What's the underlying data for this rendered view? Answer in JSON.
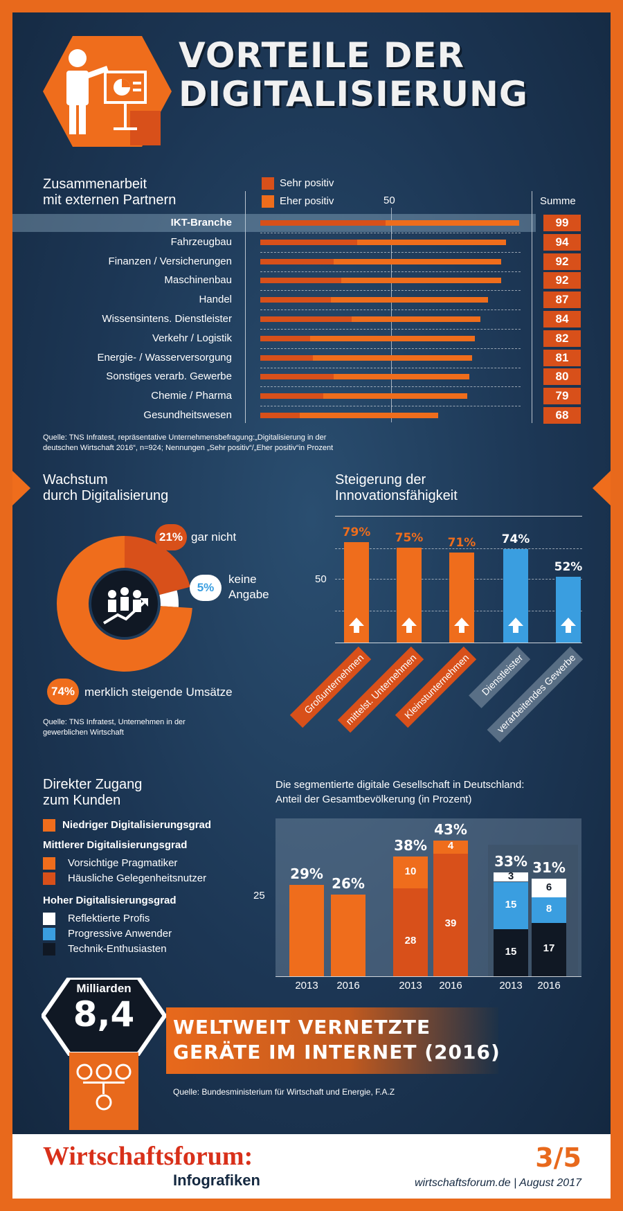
{
  "title_line1": "VORTEILE DER",
  "title_line2": "DIGITALISIERUNG",
  "colors": {
    "dark_orange": "#d8501a",
    "orange": "#ef6d1c",
    "blue": "#3a9ee0",
    "white": "#ffffff",
    "black": "#101824"
  },
  "section1": {
    "title_line1": "Zusammenarbeit",
    "title_line2": "mit externen Partnern",
    "legend": [
      "Sehr positiv",
      "Eher positiv"
    ],
    "tick": "50",
    "sum_header": "Summe",
    "source_line1": "Quelle: TNS Infratest, repräsentative Unternehmensbefragung:„Digitalisierung in der",
    "source_line2": "deutschen Wirtschaft 2016“, n=924; Nennungen „Sehr positiv“/„Eher positiv“in Prozent"
  },
  "section2": {
    "title_line1": "Wachstum",
    "title_line2": "durch Digitalisierung",
    "label_garnicht": "gar nicht",
    "label_keine_1": "keine",
    "label_keine_2": "Angabe",
    "label_merklich": "merklich steigende Umsätze",
    "source_line1": "Quelle: TNS Infratest, Unternehmen in der",
    "source_line2": "gewerblichen Wirtschaft"
  },
  "section3": {
    "title_line1": "Steigerung der",
    "title_line2": "Innovationsfähigkeit",
    "tick": "50"
  },
  "section4": {
    "title_line1": "Direkter Zugang",
    "title_line2": "zum Kunden",
    "chart_title_line1": "Die segmentierte digitale Gesellschaft in Deutschland:",
    "chart_title_line2": "Anteil der Gesamtbevölkerung (in Prozent)",
    "tick": "25",
    "legend": {
      "low": "Niedriger Digitalisierungsgrad",
      "mid_head": "Mittlerer Digitalisierungsgrad",
      "mid1": "Vorsichtige Pragmatiker",
      "mid2": "Häusliche Gelegenheitsnutzer",
      "high_head": "Hoher Digitalisierungsgrad",
      "high1": "Reflektierte Profis",
      "high2": "Progressive Anwender",
      "high3": "Technik-Enthusiasten"
    }
  },
  "section5": {
    "unit": "Milliarden",
    "value": "8,4",
    "headline_line1": "WELTWEIT VERNETZTE",
    "headline_line2": "GERÄTE IM INTERNET (2016)",
    "source": "Quelle: Bundesministerium für Wirtschaft und Energie, F.A.Z"
  },
  "footer": {
    "brand": "Wirtschaftsforum:",
    "sub": "Infografiken",
    "page": "3/5",
    "site": "wirtschaftsforum.de | August 2017"
  },
  "chart_data": [
    {
      "type": "bar",
      "orientation": "horizontal",
      "stacked": true,
      "categories": [
        "IKT-Branche",
        "Fahrzeugbau",
        "Finanzen / Versicherungen",
        "Maschinenbau",
        "Handel",
        "Wissensintens. Dienstleister",
        "Verkehr / Logistik",
        "Energie- / Wasserversorgung",
        "Sonstiges verarb. Gewerbe",
        "Chemie / Pharma",
        "Gesundheitswesen"
      ],
      "series": [
        {
          "name": "Sehr positiv",
          "values": [
            48,
            37,
            28,
            31,
            27,
            35,
            19,
            20,
            28,
            24,
            15
          ]
        },
        {
          "name": "Eher positiv",
          "values": [
            51,
            57,
            64,
            61,
            60,
            49,
            63,
            61,
            52,
            55,
            53
          ]
        }
      ],
      "totals": [
        99,
        94,
        92,
        92,
        87,
        84,
        82,
        81,
        80,
        79,
        68
      ],
      "xlim": [
        0,
        100
      ]
    },
    {
      "type": "pie",
      "donut": true,
      "slices": [
        {
          "label": "merklich steigende Umsätze",
          "value": 74,
          "display": "74%"
        },
        {
          "label": "gar nicht",
          "value": 21,
          "display": "21%"
        },
        {
          "label": "keine Angabe",
          "value": 5,
          "display": "5%"
        }
      ]
    },
    {
      "type": "bar",
      "categories": [
        "Großunternehmen",
        "mittelst. Unternehmen",
        "Kleinstunternehmen",
        "Dienstleister",
        "verarbeitendes Gewerbe"
      ],
      "values": [
        79,
        75,
        71,
        74,
        52
      ],
      "labels": [
        "79%",
        "75%",
        "71%",
        "74%",
        "52%"
      ],
      "ylim": [
        0,
        100
      ]
    },
    {
      "type": "bar",
      "stacked": true,
      "groups": [
        {
          "name": "Niedriger Digitalisierungsgrad",
          "bars": [
            {
              "x": "2013",
              "total_label": "29%",
              "segments": [
                {
                  "series": "Niedriger Digitalisierungsgrad",
                  "value": 29,
                  "label": ""
                }
              ]
            },
            {
              "x": "2016",
              "total_label": "26%",
              "segments": [
                {
                  "series": "Niedriger Digitalisierungsgrad",
                  "value": 26,
                  "label": ""
                }
              ]
            }
          ]
        },
        {
          "name": "Mittlerer Digitalisierungsgrad",
          "bars": [
            {
              "x": "2013",
              "total_label": "38%",
              "segments": [
                {
                  "series": "Häusliche Gelegenheitsnutzer",
                  "value": 28,
                  "label": "28"
                },
                {
                  "series": "Vorsichtige Pragmatiker",
                  "value": 10,
                  "label": "10"
                }
              ]
            },
            {
              "x": "2016",
              "total_label": "43%",
              "segments": [
                {
                  "series": "Häusliche Gelegenheitsnutzer",
                  "value": 39,
                  "label": "39"
                },
                {
                  "series": "Vorsichtige Pragmatiker",
                  "value": 4,
                  "label": "4"
                }
              ]
            }
          ]
        },
        {
          "name": "Hoher Digitalisierungsgrad",
          "bars": [
            {
              "x": "2013",
              "total_label": "33%",
              "segments": [
                {
                  "series": "Technik-Enthusiasten",
                  "value": 15,
                  "label": "15"
                },
                {
                  "series": "Progressive Anwender",
                  "value": 15,
                  "label": "15"
                },
                {
                  "series": "Reflektierte Profis",
                  "value": 3,
                  "label": "3"
                }
              ]
            },
            {
              "x": "2016",
              "total_label": "31%",
              "segments": [
                {
                  "series": "Technik-Enthusiasten",
                  "value": 17,
                  "label": "17"
                },
                {
                  "series": "Progressive Anwender",
                  "value": 8,
                  "label": "8"
                },
                {
                  "series": "Reflektierte Profis",
                  "value": 6,
                  "label": "6"
                }
              ]
            }
          ]
        }
      ],
      "ylim": [
        0,
        50
      ]
    }
  ]
}
